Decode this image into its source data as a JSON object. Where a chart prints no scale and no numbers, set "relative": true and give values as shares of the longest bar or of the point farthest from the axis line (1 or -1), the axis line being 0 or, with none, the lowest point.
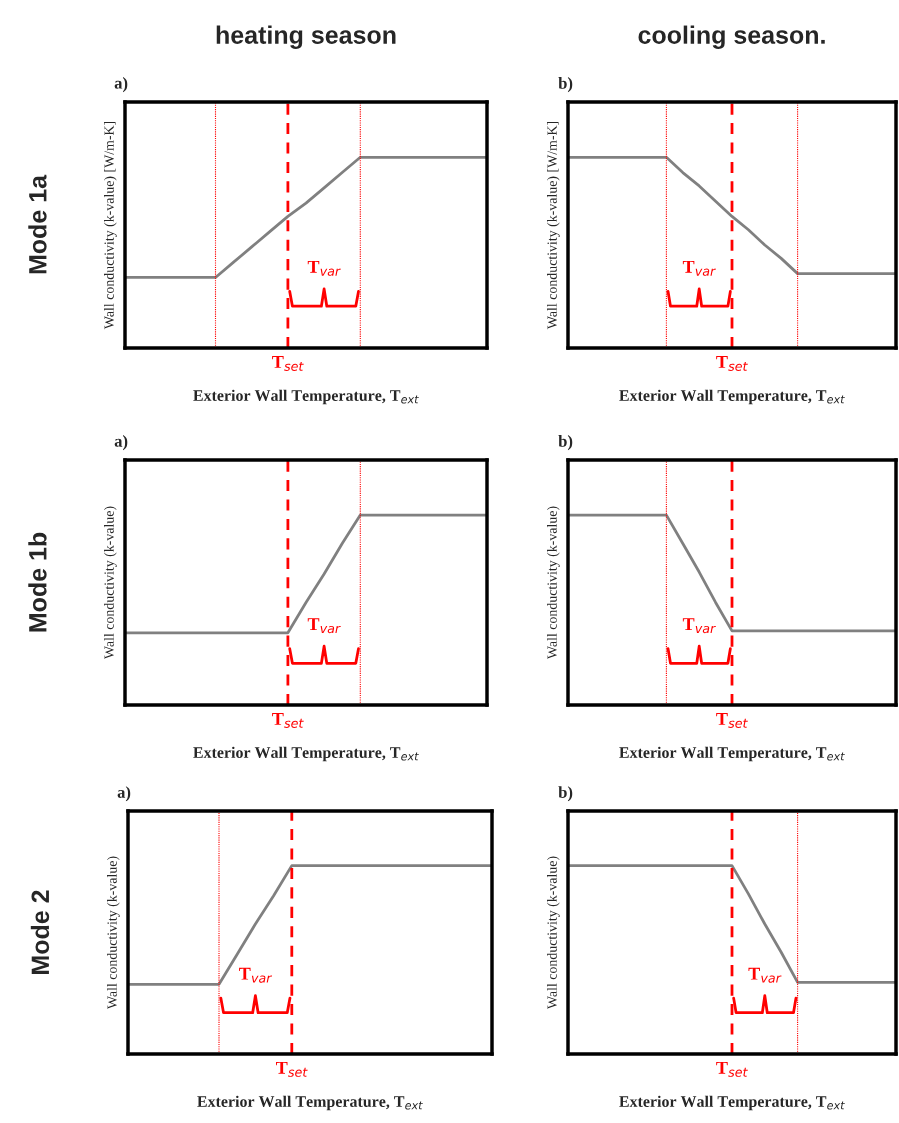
{
  "chart_data": [
    {
      "type": "line",
      "title": "heating season",
      "subtitle": "a)",
      "annotations": [
        "Mode 1a",
        "T$_{set}$",
        "T$_{var}$"
      ],
      "ylabel": "Wall conductivity (k-value) [W/m-K]",
      "xlabel": "Exterior Wall Temperature, T$_{ext}$",
      "relative": true,
      "categories": [
        null,
        null,
        null,
        null,
        null,
        null,
        null,
        null,
        null,
        null,
        null,
        null,
        null,
        null,
        null,
        null,
        null,
        null,
        null,
        null,
        null
      ],
      "series": [
        {
          "color": "#808080",
          "values": [
            0.37,
            0.37,
            0.37,
            0.37,
            0.37,
            0.37,
            0.45,
            0.53,
            0.61,
            0.69,
            0.76,
            0.84,
            0.92,
            1,
            1,
            1,
            1,
            1,
            1,
            1,
            1
          ]
        }
      ]
    },
    {
      "type": "line",
      "title": "cooling season.",
      "subtitle": "b)",
      "annotations": [
        "T$_{set}$",
        "T$_{var}$"
      ],
      "ylabel": "Wall conductivity (k-value) [W/m-K]",
      "xlabel": "Exterior Wall Temperature, T$_{ext}$",
      "relative": true,
      "categories": [
        null,
        null,
        null,
        null,
        null,
        null,
        null,
        null,
        null,
        null,
        null,
        null,
        null,
        null,
        null,
        null,
        null,
        null,
        null,
        null,
        null
      ],
      "series": [
        {
          "color": "#808080",
          "values": [
            1,
            1,
            1,
            1,
            1,
            1,
            1,
            0.92,
            0.85,
            0.77,
            0.69,
            0.62,
            0.54,
            0.47,
            0.39,
            0.39,
            0.39,
            0.39,
            0.39,
            0.39,
            0.39
          ]
        }
      ]
    },
    {
      "type": "line",
      "subtitle": "a)",
      "annotations": [
        "Mode 1b",
        "T$_{set}$",
        "T$_{var}$"
      ],
      "ylabel": "Wall conductivity (k-value)",
      "xlabel": "Exterior Wall Temperature, T$_{ext}$",
      "relative": true,
      "categories": [
        null,
        null,
        null,
        null,
        null,
        null,
        null,
        null,
        null,
        null,
        null,
        null,
        null,
        null,
        null,
        null,
        null,
        null,
        null,
        null,
        null
      ],
      "series": [
        {
          "color": "#808080",
          "values": [
            0.38,
            0.38,
            0.38,
            0.38,
            0.38,
            0.38,
            0.38,
            0.38,
            0.38,
            0.38,
            0.54,
            0.69,
            0.85,
            1,
            1,
            1,
            1,
            1,
            1,
            1,
            1
          ]
        }
      ]
    },
    {
      "type": "line",
      "subtitle": "b)",
      "annotations": [
        "T$_{set}$",
        "T$_{var}$"
      ],
      "ylabel": "Wall conductivity (k-value)",
      "xlabel": "Exterior Wall Temperature, T$_{ext}$",
      "relative": true,
      "categories": [
        null,
        null,
        null,
        null,
        null,
        null,
        null,
        null,
        null,
        null,
        null,
        null,
        null,
        null,
        null,
        null,
        null,
        null,
        null,
        null,
        null
      ],
      "series": [
        {
          "color": "#808080",
          "values": [
            1,
            1,
            1,
            1,
            1,
            1,
            1,
            0.85,
            0.7,
            0.54,
            0.39,
            0.39,
            0.39,
            0.39,
            0.39,
            0.39,
            0.39,
            0.39,
            0.39,
            0.39,
            0.39
          ]
        }
      ]
    },
    {
      "type": "line",
      "subtitle": "a)",
      "annotations": [
        "Mode 2",
        "T$_{set}$",
        "T$_{var}$"
      ],
      "ylabel": "Wall conductivity (k-value)",
      "xlabel": "Exterior Wall Temperature, T$_{ext}$",
      "relative": true,
      "categories": [
        null,
        null,
        null,
        null,
        null,
        null,
        null,
        null,
        null,
        null,
        null,
        null,
        null,
        null,
        null,
        null,
        null,
        null,
        null,
        null,
        null
      ],
      "series": [
        {
          "color": "#808080",
          "values": [
            0.37,
            0.37,
            0.37,
            0.37,
            0.37,
            0.37,
            0.53,
            0.69,
            0.84,
            1,
            1,
            1,
            1,
            1,
            1,
            1,
            1,
            1,
            1,
            1,
            1
          ]
        }
      ]
    },
    {
      "type": "line",
      "subtitle": "b)",
      "annotations": [
        "T$_{set}$",
        "T$_{var}$"
      ],
      "ylabel": "Wall conductivity (k-value)",
      "xlabel": "Exterior Wall Temperature, T$_{ext}$",
      "relative": true,
      "categories": [
        null,
        null,
        null,
        null,
        null,
        null,
        null,
        null,
        null,
        null,
        null,
        null,
        null,
        null,
        null,
        null,
        null,
        null,
        null,
        null,
        null
      ],
      "series": [
        {
          "color": "#808080",
          "values": [
            1,
            1,
            1,
            1,
            1,
            1,
            1,
            1,
            1,
            1,
            1,
            0.85,
            0.69,
            0.54,
            0.38,
            0.38,
            0.38,
            0.38,
            0.38,
            0.38,
            0.38
          ]
        }
      ]
    }
  ]
}
